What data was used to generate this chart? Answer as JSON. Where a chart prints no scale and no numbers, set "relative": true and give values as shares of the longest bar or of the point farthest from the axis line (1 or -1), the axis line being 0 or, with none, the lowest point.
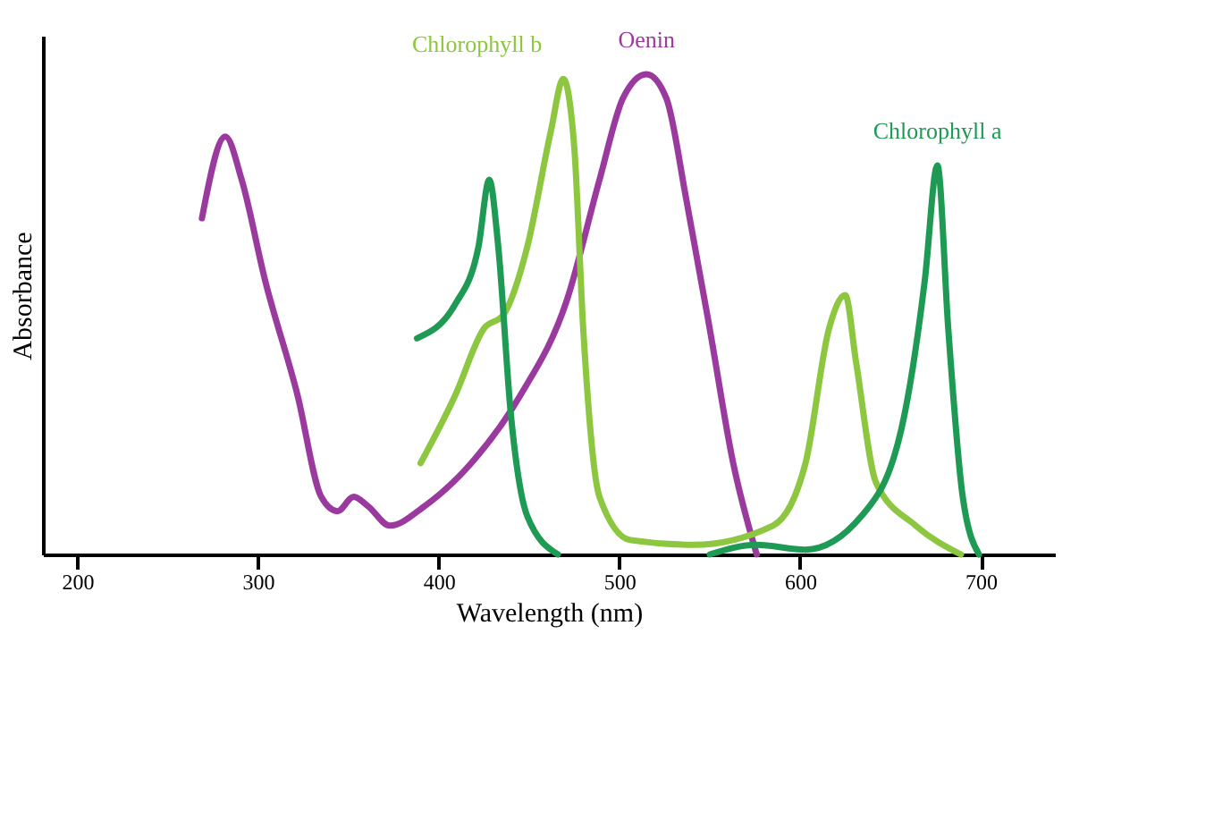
{
  "chart_data": {
    "type": "line",
    "relative": true,
    "xlabel": "Wavelength (nm)",
    "ylabel": "Absorbance",
    "xlim": [
      181,
      741
    ],
    "xticks": [
      200,
      300,
      400,
      500,
      600,
      700
    ],
    "grid": false,
    "marker": "none",
    "line_style": "solid",
    "series": [
      {
        "name": "Oenin",
        "color": "#9b3a9e",
        "x": [
          269,
          282,
          291,
          304,
          322,
          335,
          344,
          353,
          361,
          373,
          392,
          418,
          445,
          471,
          489,
          502,
          515,
          526,
          537,
          550,
          563,
          576
        ],
        "values": [
          0.7,
          0.87,
          0.78,
          0.57,
          0.33,
          0.12,
          0.09,
          0.12,
          0.1,
          0.06,
          0.1,
          0.19,
          0.33,
          0.53,
          0.78,
          0.95,
          1.0,
          0.95,
          0.74,
          0.47,
          0.19,
          0.0
        ]
      },
      {
        "name": "Chlorophyll b",
        "color": "#8dc63f",
        "x": [
          390,
          409,
          425,
          436,
          449,
          462,
          469,
          475,
          480,
          489,
          506,
          541,
          585,
          603,
          616,
          625,
          631,
          642,
          664,
          689
        ],
        "values": [
          0.19,
          0.33,
          0.47,
          0.5,
          0.64,
          0.88,
          0.99,
          0.85,
          0.47,
          0.12,
          0.03,
          0.02,
          0.06,
          0.19,
          0.47,
          0.54,
          0.4,
          0.15,
          0.06,
          0.0
        ]
      },
      {
        "name": "Chlorophyll a",
        "color": "#1e9a55",
        "x": [
          388,
          409,
          422,
          428,
          433,
          440,
          449,
          466,
          500,
          550,
          576,
          603,
          634,
          656,
          669,
          676,
          682,
          690,
          699
        ],
        "values": [
          0.45,
          0.52,
          0.64,
          0.78,
          0.64,
          0.29,
          0.08,
          0.0,
          null,
          0.0,
          0.02,
          0.01,
          0.08,
          0.26,
          0.57,
          0.81,
          0.47,
          0.12,
          0.0
        ]
      }
    ]
  }
}
